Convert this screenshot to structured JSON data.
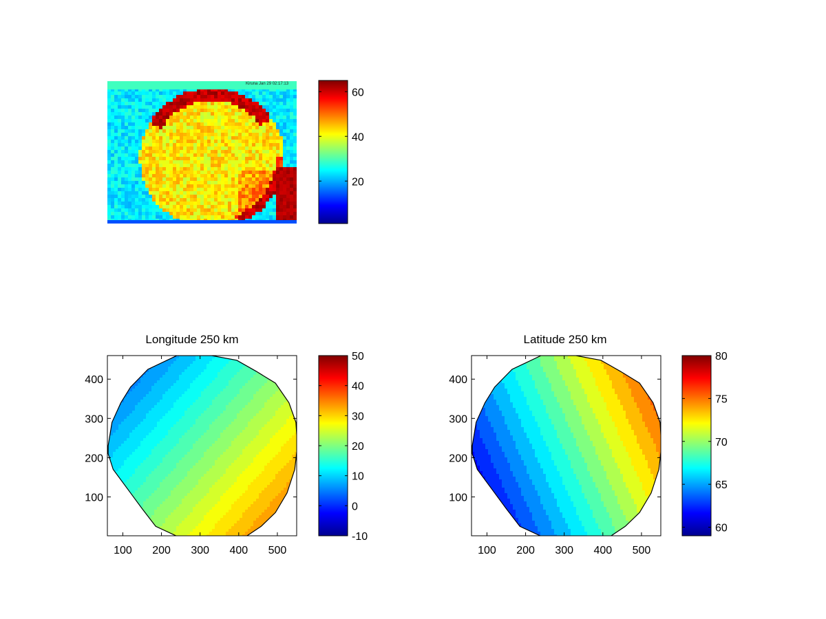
{
  "colormap": "jet",
  "chart_data": [
    {
      "type": "heatmap",
      "title": "",
      "watermark": "Kiruna   Jan 29 02:17:13",
      "colorbar": {
        "range": [
          1,
          65
        ],
        "ticks": [
          20,
          40,
          60
        ]
      },
      "image": {
        "background_value": 24,
        "disk_value": 42,
        "bright_edge_value": 64,
        "lower_right_value": 64
      }
    },
    {
      "type": "heatmap",
      "title": "Longitude 250 km",
      "xticks": [
        100,
        200,
        300,
        400,
        500
      ],
      "yticks": [
        100,
        200,
        300,
        400
      ],
      "xlim": [
        60,
        550
      ],
      "ylim": [
        1,
        460
      ],
      "colorbar": {
        "range": [
          -10,
          50
        ],
        "ticks": [
          -10,
          0,
          10,
          20,
          30,
          40,
          50
        ]
      },
      "contour_levels": [
        4,
        6,
        8,
        10,
        12,
        14,
        16,
        18,
        20,
        22,
        24,
        26,
        28,
        30,
        32,
        34,
        36
      ],
      "field": {
        "corner_upper_left": 0,
        "corner_lower_right": 38
      }
    },
    {
      "type": "heatmap",
      "title": "Latitude 250 km",
      "xticks": [
        100,
        200,
        300,
        400,
        500
      ],
      "yticks": [
        100,
        200,
        300,
        400
      ],
      "xlim": [
        60,
        550
      ],
      "ylim": [
        1,
        460
      ],
      "colorbar": {
        "range": [
          59,
          80
        ],
        "ticks": [
          60,
          65,
          70,
          75,
          80
        ]
      },
      "contour_levels": [
        60,
        61,
        62,
        63,
        64,
        65,
        66,
        67,
        68,
        69,
        70,
        71,
        72,
        73,
        74,
        75,
        76
      ],
      "field": {
        "corner_lower_left": 59.5,
        "corner_upper_right": 77
      }
    }
  ]
}
